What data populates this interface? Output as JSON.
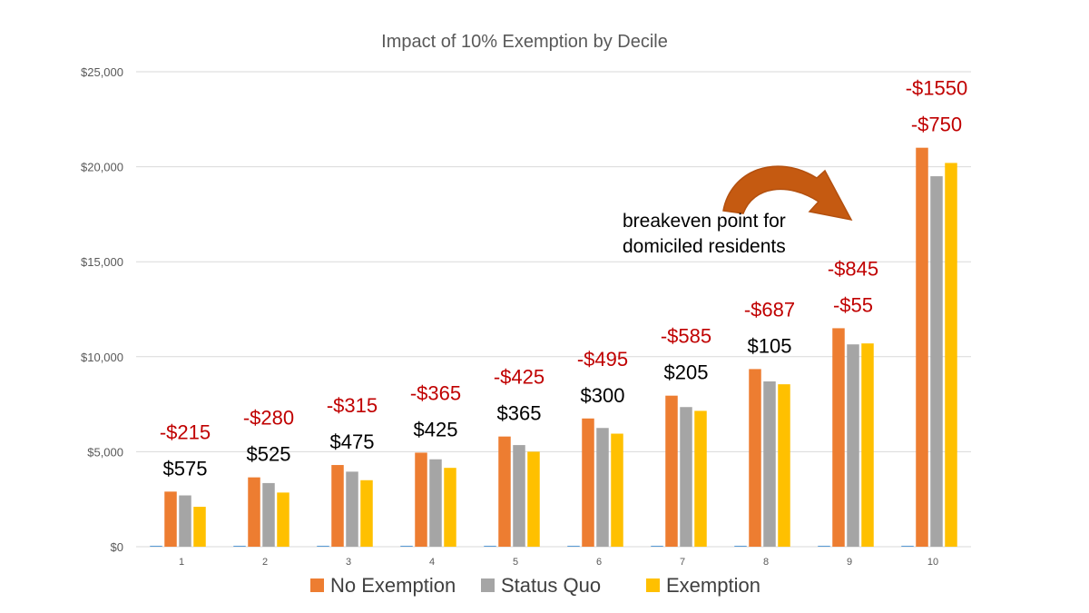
{
  "chart_data": {
    "type": "bar",
    "title": "Impact of 10%  Exemption by Decile",
    "categories": [
      "1",
      "2",
      "3",
      "4",
      "5",
      "6",
      "7",
      "8",
      "9",
      "10"
    ],
    "ylim": [
      0,
      25000
    ],
    "yticks": [
      0,
      5000,
      10000,
      15000,
      20000,
      25000
    ],
    "ytick_labels": [
      "$0",
      "$5,000",
      "$10,000",
      "$15,000",
      "$20,000",
      "$25,000"
    ],
    "grid": true,
    "legend_position": "bottom",
    "series": [
      {
        "name": "",
        "color": "#5b9bd5",
        "values": [
          50,
          50,
          50,
          50,
          50,
          50,
          50,
          50,
          50,
          50
        ]
      },
      {
        "name": "No Exemption",
        "color": "#ed7d31",
        "values": [
          2900,
          3650,
          4300,
          4950,
          5800,
          6750,
          7950,
          9350,
          11500,
          21000
        ]
      },
      {
        "name": "Status Quo",
        "color": "#a5a5a5",
        "values": [
          2700,
          3350,
          3950,
          4600,
          5350,
          6250,
          7350,
          8700,
          10650,
          19500
        ]
      },
      {
        "name": "Exemption",
        "color": "#ffc000",
        "values": [
          2100,
          2850,
          3500,
          4150,
          5000,
          5950,
          7150,
          8550,
          10700,
          20200
        ]
      }
    ],
    "annotations_red": [
      "-$215",
      "-$280",
      "-$315",
      "-$365",
      "-$425",
      "-$495",
      "-$585",
      "-$687",
      "-$845",
      "-$1550"
    ],
    "annotations_second": [
      "$575",
      "$525",
      "$475",
      "$425",
      "$365",
      "$300",
      "$205",
      "$105",
      "-$55",
      "-$750"
    ],
    "annotations_second_colors": [
      "#000000",
      "#000000",
      "#000000",
      "#000000",
      "#000000",
      "#000000",
      "#000000",
      "#000000",
      "#c00000",
      "#c00000"
    ],
    "note": [
      "breakeven point for",
      "domiciled residents"
    ],
    "arrow_color": "#c55a11"
  }
}
